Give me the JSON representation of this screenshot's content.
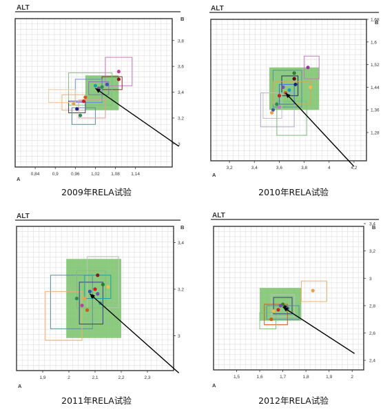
{
  "chart_data": [
    {
      "type": "scatter",
      "title": "ALT",
      "caption": "2009年RELA试验",
      "corner_x": "A",
      "corner_y": "B",
      "xlim": [
        0.78,
        1.25
      ],
      "ylim": [
        2.82,
        3.97
      ],
      "x_ticks": [
        "0,84",
        "0,9",
        "0,96",
        "1,02",
        "1,08",
        "1,14"
      ],
      "x_tick_vals": [
        0.84,
        0.9,
        0.96,
        1.02,
        1.08,
        1.14
      ],
      "y_ticks": [
        "3",
        "3,2",
        "3,4",
        "3,6",
        "3,8"
      ],
      "y_tick_vals": [
        3.0,
        3.2,
        3.4,
        3.6,
        3.8
      ],
      "grid": true,
      "green_region": {
        "x": [
          0.99,
          1.09
        ],
        "y": [
          3.26,
          3.53
        ]
      },
      "boxes": [
        {
          "x": [
            1.05,
            1.13
          ],
          "y": [
            3.45,
            3.67
          ],
          "color": "#c678c6"
        },
        {
          "x": [
            1.04,
            1.1
          ],
          "y": [
            3.42,
            3.52
          ],
          "color": "#8b2a2a"
        },
        {
          "x": [
            0.94,
            1.07
          ],
          "y": [
            3.3,
            3.55
          ],
          "color": "#7fbf7f"
        },
        {
          "x": [
            0.96,
            1.04
          ],
          "y": [
            3.32,
            3.5
          ],
          "color": "#6a8fd0"
        },
        {
          "x": [
            0.92,
            0.99
          ],
          "y": [
            3.26,
            3.38
          ],
          "color": "#f0b070"
        },
        {
          "x": [
            0.94,
            0.99
          ],
          "y": [
            3.24,
            3.33
          ],
          "color": "#3a3a8a"
        },
        {
          "x": [
            0.95,
            1.02
          ],
          "y": [
            3.15,
            3.28
          ],
          "color": "#5b8fa0"
        },
        {
          "x": [
            0.88,
            0.96
          ],
          "y": [
            3.32,
            3.42
          ],
          "color": "#f3c9a0"
        },
        {
          "x": [
            1.0,
            1.06
          ],
          "y": [
            3.38,
            3.48
          ],
          "color": "#8e6bbf"
        },
        {
          "x": [
            0.97,
            1.05
          ],
          "y": [
            3.2,
            3.34
          ],
          "color": "#e0a0a0"
        }
      ],
      "points": [
        {
          "x": 1.09,
          "y": 3.56,
          "color": "#c0409a"
        },
        {
          "x": 1.09,
          "y": 3.5,
          "color": "#8b1a1a"
        },
        {
          "x": 1.055,
          "y": 3.46,
          "color": "#3b5ba8"
        },
        {
          "x": 1.04,
          "y": 3.44,
          "color": "#2e8b57"
        },
        {
          "x": 1.02,
          "y": 3.45,
          "color": "#20a0a0"
        },
        {
          "x": 1.03,
          "y": 3.43,
          "color": "#7b4fb0"
        },
        {
          "x": 0.99,
          "y": 3.36,
          "color": "#d05a1e"
        },
        {
          "x": 0.985,
          "y": 3.33,
          "color": "#cc2222"
        },
        {
          "x": 0.965,
          "y": 3.27,
          "color": "#1e1e7a"
        },
        {
          "x": 0.975,
          "y": 3.22,
          "color": "#2e8b57"
        },
        {
          "x": 0.955,
          "y": 3.31,
          "color": "#e8a04a"
        }
      ],
      "arrow": {
        "from": [
          1.27,
          2.98
        ],
        "to": [
          1.02,
          3.43
        ]
      }
    },
    {
      "type": "scatter",
      "title": "ALT",
      "caption": "2010年RELA试验",
      "corner_x": "A",
      "corner_y": "B",
      "xlim": [
        3.05,
        4.3
      ],
      "ylim": [
        1.18,
        1.68
      ],
      "x_ticks": [
        "3,2",
        "3,4",
        "3,6",
        "3,8",
        "4",
        "4,2"
      ],
      "x_tick_vals": [
        3.2,
        3.4,
        3.6,
        3.8,
        4.0,
        4.2
      ],
      "y_ticks": [
        "1,28",
        "1,36",
        "1,44",
        "1,52",
        "1,6",
        "1,68"
      ],
      "y_tick_vals": [
        1.28,
        1.36,
        1.44,
        1.52,
        1.6,
        1.68
      ],
      "grid": true,
      "green_region": {
        "x": [
          3.52,
          3.92
        ],
        "y": [
          1.36,
          1.51
        ]
      },
      "boxes": [
        {
          "x": [
            3.45,
            3.72
          ],
          "y": [
            1.3,
            1.42
          ],
          "color": "#a8a8d8"
        },
        {
          "x": [
            3.58,
            3.82
          ],
          "y": [
            1.27,
            1.39
          ],
          "color": "#7fbf7f"
        },
        {
          "x": [
            3.55,
            3.78
          ],
          "y": [
            1.37,
            1.5
          ],
          "color": "#5b8fa0"
        },
        {
          "x": [
            3.62,
            3.75
          ],
          "y": [
            1.41,
            1.48
          ],
          "color": "#2a2a5a"
        },
        {
          "x": [
            3.55,
            3.85
          ],
          "y": [
            1.38,
            1.46
          ],
          "color": "#e8a04a"
        },
        {
          "x": [
            3.8,
            3.92
          ],
          "y": [
            1.47,
            1.55
          ],
          "color": "#c678c6"
        },
        {
          "x": [
            3.47,
            3.62
          ],
          "y": [
            1.33,
            1.42
          ],
          "color": "#c0c0c0"
        },
        {
          "x": [
            3.6,
            3.72
          ],
          "y": [
            1.38,
            1.45
          ],
          "color": "#3a6fd0"
        }
      ],
      "points": [
        {
          "x": 3.83,
          "y": 1.51,
          "color": "#a030a0"
        },
        {
          "x": 3.72,
          "y": 1.49,
          "color": "#2e7d32"
        },
        {
          "x": 3.72,
          "y": 1.47,
          "color": "#5a0a0a"
        },
        {
          "x": 3.73,
          "y": 1.45,
          "color": "#1a237e"
        },
        {
          "x": 3.68,
          "y": 1.43,
          "color": "#20a0a0"
        },
        {
          "x": 3.63,
          "y": 1.44,
          "color": "#7b4fb0"
        },
        {
          "x": 3.65,
          "y": 1.42,
          "color": "#d05a1e"
        },
        {
          "x": 3.6,
          "y": 1.41,
          "color": "#cc2222"
        },
        {
          "x": 3.58,
          "y": 1.38,
          "color": "#2e8b57"
        },
        {
          "x": 3.55,
          "y": 1.36,
          "color": "#3b5ba8"
        },
        {
          "x": 3.54,
          "y": 1.35,
          "color": "#e8a04a"
        },
        {
          "x": 3.6,
          "y": 1.37,
          "color": "#c678c6"
        },
        {
          "x": 3.85,
          "y": 1.44,
          "color": "#ffb74d"
        }
      ],
      "arrow": {
        "from": [
          4.2,
          1.16
        ],
        "to": [
          3.65,
          1.42
        ]
      }
    },
    {
      "type": "scatter",
      "title": "ALT",
      "caption": "2011年RELA试验",
      "corner_x": "A",
      "corner_y": "B",
      "xlim": [
        1.8,
        2.4
      ],
      "ylim": [
        2.85,
        3.47
      ],
      "x_ticks": [
        "1,9",
        "2",
        "2,1",
        "2,2",
        "2,3"
      ],
      "x_tick_vals": [
        1.9,
        2.0,
        2.1,
        2.2,
        2.3
      ],
      "y_ticks": [
        "3",
        "3,2",
        "3,4"
      ],
      "y_tick_vals": [
        3.0,
        3.2,
        3.4
      ],
      "grid": true,
      "green_region": {
        "x": [
          1.99,
          2.2
        ],
        "y": [
          2.99,
          3.33
        ]
      },
      "boxes": [
        {
          "x": [
            2.07,
            2.19
          ],
          "y": [
            3.12,
            3.34
          ],
          "color": "#c0c0c0"
        },
        {
          "x": [
            1.93,
            2.09
          ],
          "y": [
            3.03,
            3.26
          ],
          "color": "#5b8fa0"
        },
        {
          "x": [
            1.91,
            2.05
          ],
          "y": [
            2.98,
            3.19
          ],
          "color": "#f0b070"
        },
        {
          "x": [
            2.03,
            2.14
          ],
          "y": [
            3.12,
            3.28
          ],
          "color": "#7fbf7f"
        },
        {
          "x": [
            2.04,
            2.13
          ],
          "y": [
            3.05,
            3.23
          ],
          "color": "#3a3a8a"
        },
        {
          "x": [
            2.06,
            2.16
          ],
          "y": [
            3.16,
            3.26
          ],
          "color": "#20a0a0"
        }
      ],
      "points": [
        {
          "x": 2.11,
          "y": 3.26,
          "color": "#8b1a1a"
        },
        {
          "x": 2.13,
          "y": 3.22,
          "color": "#2e7d32"
        },
        {
          "x": 2.15,
          "y": 3.21,
          "color": "#f0c040"
        },
        {
          "x": 2.1,
          "y": 3.2,
          "color": "#cc2222"
        },
        {
          "x": 2.11,
          "y": 3.18,
          "color": "#7b4fb0"
        },
        {
          "x": 2.08,
          "y": 3.19,
          "color": "#3b5ba8"
        },
        {
          "x": 2.09,
          "y": 3.17,
          "color": "#1a1a1a"
        },
        {
          "x": 2.06,
          "y": 3.16,
          "color": "#e8a04a"
        },
        {
          "x": 2.03,
          "y": 3.16,
          "color": "#2e8b57"
        },
        {
          "x": 2.05,
          "y": 3.13,
          "color": "#c0409a"
        },
        {
          "x": 2.12,
          "y": 3.14,
          "color": "#20a0a0"
        },
        {
          "x": 2.07,
          "y": 3.11,
          "color": "#d05a1e"
        }
      ],
      "arrow": {
        "from": [
          2.42,
          2.84
        ],
        "to": [
          2.08,
          3.18
        ]
      }
    },
    {
      "type": "scatter",
      "title": "ALT",
      "caption": "2012年RELA试验",
      "corner_x": "A",
      "corner_y": "B",
      "xlim": [
        1.4,
        2.05
      ],
      "ylim": [
        2.33,
        3.38
      ],
      "x_ticks": [
        "1,5",
        "1,6",
        "1,7",
        "1,8",
        "1,9",
        "2"
      ],
      "x_tick_vals": [
        1.5,
        1.6,
        1.7,
        1.8,
        1.9,
        2.0
      ],
      "y_ticks": [
        "2,4",
        "2,6",
        "2,8",
        "3",
        "3,2",
        "3,4"
      ],
      "y_tick_vals": [
        2.4,
        2.6,
        2.8,
        3.0,
        3.2,
        3.4
      ],
      "grid": true,
      "green_region": {
        "x": [
          1.6,
          1.78
        ],
        "y": [
          2.69,
          2.93
        ]
      },
      "boxes": [
        {
          "x": [
            1.78,
            1.89
          ],
          "y": [
            2.83,
            2.98
          ],
          "color": "#f0b070"
        },
        {
          "x": [
            1.65,
            1.75
          ],
          "y": [
            2.72,
            2.88
          ],
          "color": "#c0c0c0"
        },
        {
          "x": [
            1.62,
            1.72
          ],
          "y": [
            2.66,
            2.81
          ],
          "color": "#d05a1e"
        },
        {
          "x": [
            1.6,
            1.67
          ],
          "y": [
            2.63,
            2.75
          ],
          "color": "#7fbf7f"
        },
        {
          "x": [
            1.66,
            1.74
          ],
          "y": [
            2.74,
            2.86
          ],
          "color": "#3a3a8a"
        },
        {
          "x": [
            1.63,
            1.77
          ],
          "y": [
            2.7,
            2.8
          ],
          "color": "#5b8fa0"
        }
      ],
      "points": [
        {
          "x": 1.83,
          "y": 2.91,
          "color": "#e8a04a"
        },
        {
          "x": 1.7,
          "y": 2.81,
          "color": "#2e7d32"
        },
        {
          "x": 1.71,
          "y": 2.79,
          "color": "#1a1a1a"
        },
        {
          "x": 1.69,
          "y": 2.8,
          "color": "#7b4fb0"
        },
        {
          "x": 1.72,
          "y": 2.78,
          "color": "#3b5ba8"
        },
        {
          "x": 1.68,
          "y": 2.77,
          "color": "#cc2222"
        },
        {
          "x": 1.66,
          "y": 2.76,
          "color": "#f0c040"
        },
        {
          "x": 1.65,
          "y": 2.7,
          "color": "#d05a1e"
        }
      ],
      "arrow": {
        "from": [
          2.01,
          2.45
        ],
        "to": [
          1.7,
          2.79
        ]
      }
    }
  ]
}
